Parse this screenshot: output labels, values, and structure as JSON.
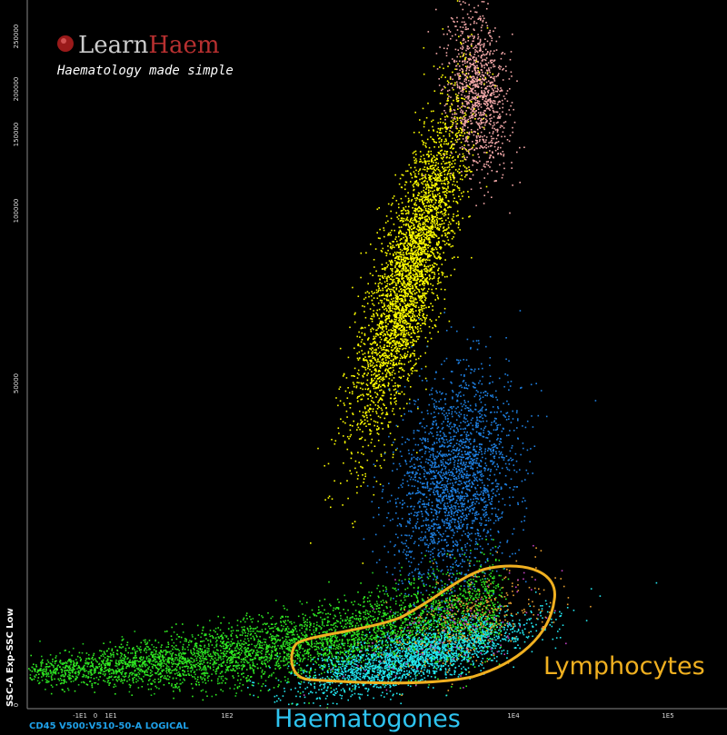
{
  "logo": {
    "name_first": "Learn",
    "name_second": "Haem",
    "tagline": "Haematology made simple"
  },
  "axes": {
    "x_label": "CD45 V500:V510-50-A LOGICAL",
    "y_label": "SSC-A Exp-SSC Low",
    "y_tick_labels": [
      "250000",
      "200000",
      "150000",
      "100000",
      "50000",
      "0"
    ],
    "x_tick_labels": [
      "-1E1",
      "0",
      "1E1",
      "1E2",
      "1E4",
      "1E5"
    ]
  },
  "annotations": {
    "lymphocytes": "Lymphocytes",
    "haematogones": "Haematogones"
  }
}
